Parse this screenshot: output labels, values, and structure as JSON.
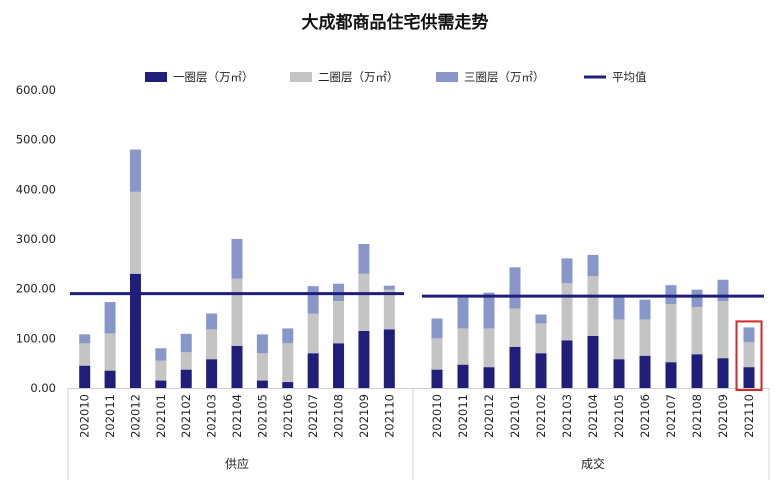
{
  "chart_data": {
    "type": "bar",
    "stacked": true,
    "title": "大成都商品住宅供需走势",
    "legend_position": "top",
    "legend": [
      {
        "label": "一圈层（万㎡）",
        "type": "bar",
        "color": "#1f1e7a"
      },
      {
        "label": "二圈层（万㎡）",
        "type": "bar",
        "color": "#c4c4c4"
      },
      {
        "label": "三圈层（万㎡）",
        "type": "bar",
        "color": "#8797c9"
      },
      {
        "label": "平均值",
        "type": "line",
        "color": "#1f1e7a"
      }
    ],
    "ylim": [
      0,
      600
    ],
    "yticks": [
      "0.00",
      "100.00",
      "200.00",
      "300.00",
      "400.00",
      "500.00",
      "600.00"
    ],
    "grid": false,
    "groups": [
      {
        "label": "供应",
        "categories": [
          "202010",
          "202011",
          "202012",
          "202101",
          "202102",
          "202103",
          "202104",
          "202105",
          "202106",
          "202107",
          "202108",
          "202109",
          "202110"
        ],
        "series": [
          {
            "name": "一圈层（万㎡）",
            "values": [
              45,
              35,
              230,
              15,
              37,
              58,
              85,
              15,
              12,
              70,
              90,
              115,
              118
            ]
          },
          {
            "name": "二圈层（万㎡）",
            "values": [
              45,
              75,
              165,
              40,
              35,
              60,
              135,
              55,
              78,
              80,
              85,
              115,
              80
            ]
          },
          {
            "name": "三圈层（万㎡）",
            "values": [
              18,
              63,
              85,
              25,
              37,
              32,
              80,
              38,
              30,
              55,
              35,
              60,
              8
            ]
          }
        ],
        "average": 190
      },
      {
        "label": "成交",
        "categories": [
          "202010",
          "202011",
          "202012",
          "202101",
          "202102",
          "202103",
          "202104",
          "202105",
          "202106",
          "202107",
          "202108",
          "202109",
          "202110"
        ],
        "series": [
          {
            "name": "一圈层（万㎡）",
            "values": [
              37,
              47,
              42,
              83,
              70,
              96,
              105,
              58,
              65,
              52,
              68,
              60,
              42
            ]
          },
          {
            "name": "二圈层（万㎡）",
            "values": [
              63,
              73,
              78,
              77,
              60,
              115,
              120,
              80,
              73,
              117,
              95,
              115,
              50
            ]
          },
          {
            "name": "三圈层（万㎡）",
            "values": [
              40,
              62,
              72,
              83,
              18,
              50,
              43,
              45,
              40,
              38,
              35,
              43,
              30
            ]
          }
        ],
        "average": 185
      }
    ],
    "highlight": {
      "group": 1,
      "category": "202110",
      "color": "#d62728"
    }
  }
}
